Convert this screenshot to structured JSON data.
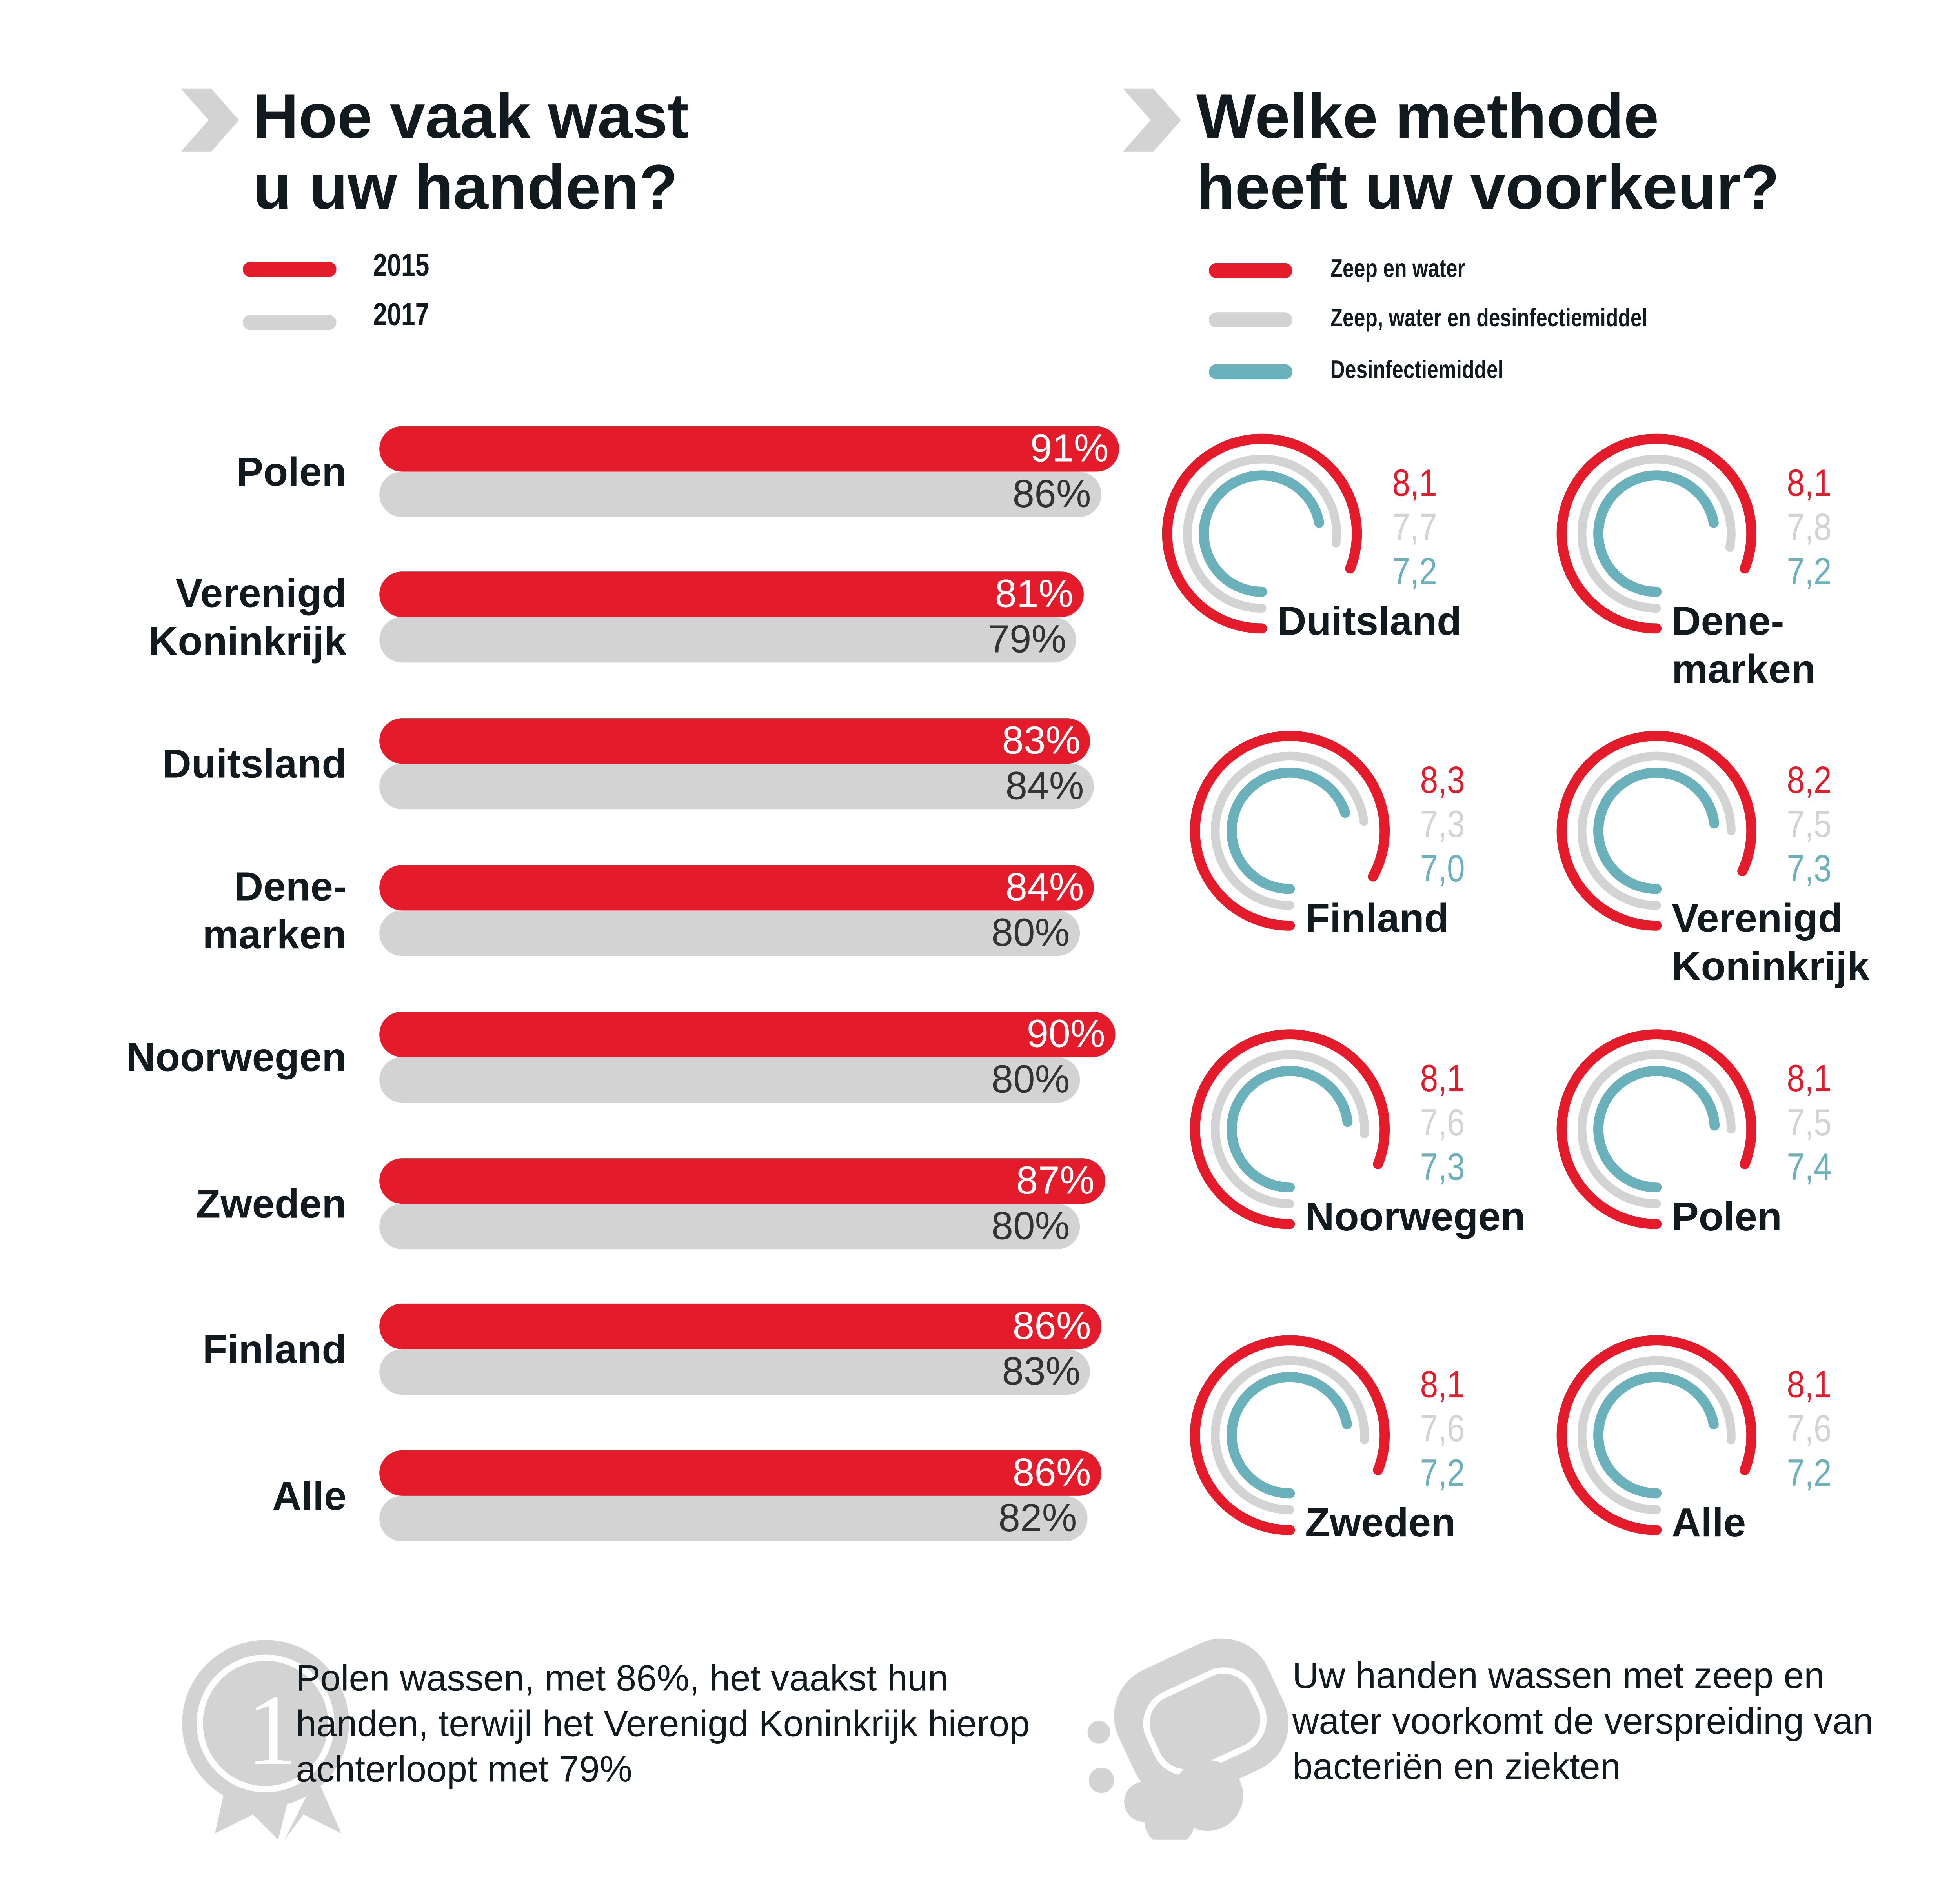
{
  "colors": {
    "red": "#e31b2a",
    "gray": "#d3d3d3",
    "teal": "#6bb1bc",
    "text": "#111a1f"
  },
  "left": {
    "title_line1": "Hoe vaak wast",
    "title_line2": "u uw handen?",
    "legend": [
      "2015",
      "2017"
    ]
  },
  "right": {
    "title_line1": "Welke methode",
    "title_line2": "heeft uw voorkeur?",
    "legend": [
      "Zeep en water",
      "Zeep, water en desinfectiemiddel",
      "Desinfectiemiddel"
    ]
  },
  "chart_data": [
    {
      "type": "bar",
      "categories": [
        "Polen",
        "Verenigd Koninkrijk",
        "Duitsland",
        "Dene-marken",
        "Noorwegen",
        "Zweden",
        "Finland",
        "Alle"
      ],
      "series": [
        {
          "name": "2015",
          "values": [
            91,
            81,
            83,
            84,
            90,
            87,
            86,
            86
          ],
          "labels": [
            "91%",
            "81%",
            "83%",
            "84%",
            "90%",
            "87%",
            "86%",
            "86%"
          ]
        },
        {
          "name": "2017",
          "values": [
            86,
            79,
            84,
            80,
            80,
            80,
            83,
            82
          ],
          "labels": [
            "86%",
            "79%",
            "84%",
            "80%",
            "80%",
            "80%",
            "83%",
            "82%"
          ]
        }
      ]
    },
    {
      "type": "radial",
      "series_names": [
        "Zeep en water",
        "Zeep, water en desinfectiemiddel",
        "Desinfectiemiddel"
      ],
      "items": [
        {
          "label": "Duitsland",
          "values": [
            8.1,
            7.7,
            7.2
          ],
          "labels": [
            "8,1",
            "7,7",
            "7,2"
          ]
        },
        {
          "label": "Dene-\nmarken",
          "values": [
            8.1,
            7.8,
            7.2
          ],
          "labels": [
            "8,1",
            "7,8",
            "7,2"
          ]
        },
        {
          "label": "Finland",
          "values": [
            8.3,
            7.3,
            7.0
          ],
          "labels": [
            "8,3",
            "7,3",
            "7,0"
          ]
        },
        {
          "label": "Verenigd\nKoninkrijk",
          "values": [
            8.2,
            7.5,
            7.3
          ],
          "labels": [
            "8,2",
            "7,5",
            "7,3"
          ]
        },
        {
          "label": "Noorwegen",
          "values": [
            8.1,
            7.6,
            7.3
          ],
          "labels": [
            "8,1",
            "7,6",
            "7,3"
          ]
        },
        {
          "label": "Polen",
          "values": [
            8.1,
            7.5,
            7.4
          ],
          "labels": [
            "8,1",
            "7,5",
            "7,4"
          ]
        },
        {
          "label": "Zweden",
          "values": [
            8.1,
            7.6,
            7.2
          ],
          "labels": [
            "8,1",
            "7,6",
            "7,2"
          ]
        },
        {
          "label": "Alle",
          "values": [
            8.1,
            7.6,
            7.2
          ],
          "labels": [
            "8,1",
            "7,6",
            "7,2"
          ]
        }
      ]
    }
  ],
  "notes": {
    "left": "Polen wassen, met 86%, het vaakst hun handen, terwijl het Verenigd Koninkrijk hierop achterloopt met 79%",
    "right": "Uw handen wassen met zeep en water voorkomt de verspreiding van bacteriën en ziekten"
  },
  "icons": {
    "left_chevron": "chevron-right-icon",
    "medal": "medal-first-place-icon",
    "soap": "soap-bar-icon"
  }
}
